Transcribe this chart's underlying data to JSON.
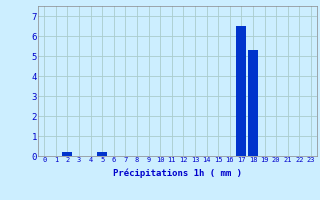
{
  "hours": [
    0,
    1,
    2,
    3,
    4,
    5,
    6,
    7,
    8,
    9,
    10,
    11,
    12,
    13,
    14,
    15,
    16,
    17,
    18,
    19,
    20,
    21,
    22,
    23
  ],
  "values": [
    0,
    0,
    0.2,
    0,
    0,
    0.2,
    0,
    0,
    0,
    0,
    0,
    0,
    0,
    0,
    0,
    0,
    0,
    6.5,
    5.3,
    0,
    0,
    0,
    0,
    0
  ],
  "bar_color": "#0033CC",
  "background_color": "#CCEEFF",
  "grid_color": "#AACCCC",
  "xlabel": "Précipitations 1h ( mm )",
  "xlabel_color": "#0000CC",
  "xlabel_fontsize": 6.5,
  "tick_color": "#0000CC",
  "ytick_fontsize": 6.5,
  "xtick_fontsize": 5.0,
  "ylim": [
    0,
    7.5
  ],
  "yticks": [
    0,
    1,
    2,
    3,
    4,
    5,
    6,
    7
  ],
  "bar_width": 0.85
}
